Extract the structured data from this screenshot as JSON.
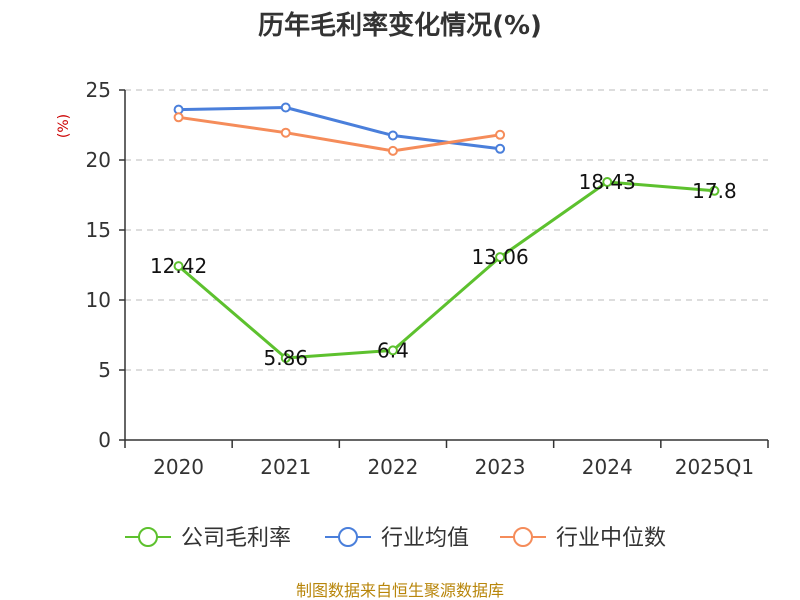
{
  "chart_data": {
    "type": "line",
    "title": "历年毛利率变化情况(%)",
    "unit_label": "(%)",
    "categories": [
      "2020",
      "2021",
      "2022",
      "2023",
      "2024",
      "2025Q1"
    ],
    "yticks": [
      "0",
      "5",
      "10",
      "15",
      "20",
      "25"
    ],
    "ylim": [
      0,
      25
    ],
    "grid": true,
    "legend_position": "bottom",
    "series": [
      {
        "name": "公司毛利率",
        "color": "#5dc12e",
        "values": [
          12.42,
          5.86,
          6.4,
          13.06,
          18.43,
          17.8
        ],
        "labels": [
          "12.42",
          "5.86",
          "6.4",
          "13.06",
          "18.43",
          "17.8"
        ]
      },
      {
        "name": "行业均值",
        "color": "#4a7fdb",
        "values": [
          23.6,
          23.75,
          21.75,
          20.8,
          null,
          null
        ]
      },
      {
        "name": "行业中位数",
        "color": "#f58c5a",
        "values": [
          23.05,
          21.95,
          20.65,
          21.8,
          null,
          null
        ]
      }
    ]
  },
  "footer": {
    "source": "制图数据来自恒生聚源数据库"
  }
}
